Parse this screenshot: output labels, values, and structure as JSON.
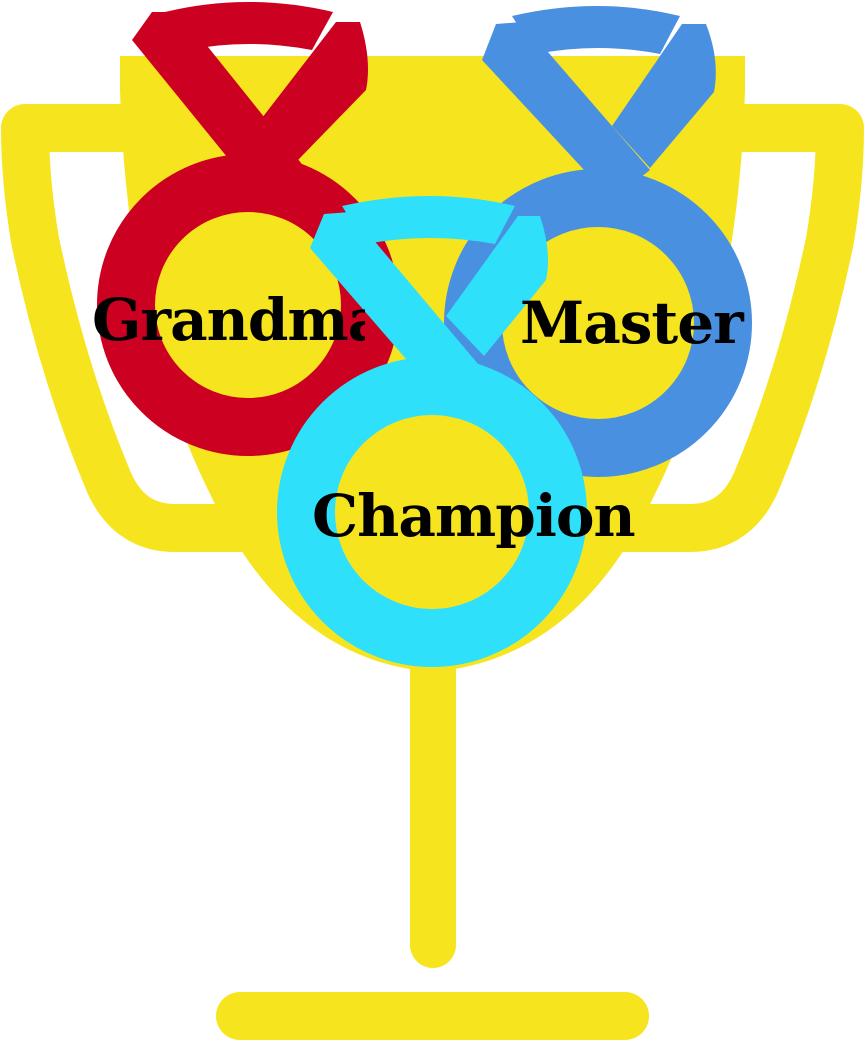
{
  "colors": {
    "background": "#ffffff",
    "trophy": "#f6e51e",
    "grandmaster_medal": "#cc0020",
    "master_medal": "#4a90e0",
    "champion_medal": "#2ee0fa",
    "label_text": "#000000"
  },
  "medals": {
    "grandmaster": {
      "label": "Grandmaster",
      "icon": "red-medal-icon"
    },
    "master": {
      "label": "Master",
      "icon": "blue-medal-icon"
    },
    "champion": {
      "label": "Champion",
      "icon": "cyan-medal-icon"
    }
  },
  "trophy": {
    "icon": "trophy-cup-icon"
  }
}
